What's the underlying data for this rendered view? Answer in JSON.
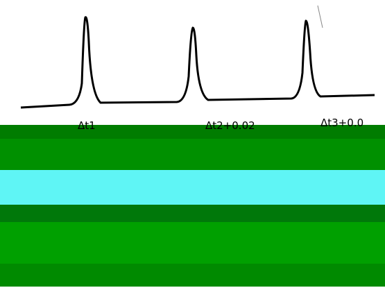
{
  "labels": [
    "Δt1",
    "Δt2+0.02",
    "Δt3+0.0"
  ]
}
